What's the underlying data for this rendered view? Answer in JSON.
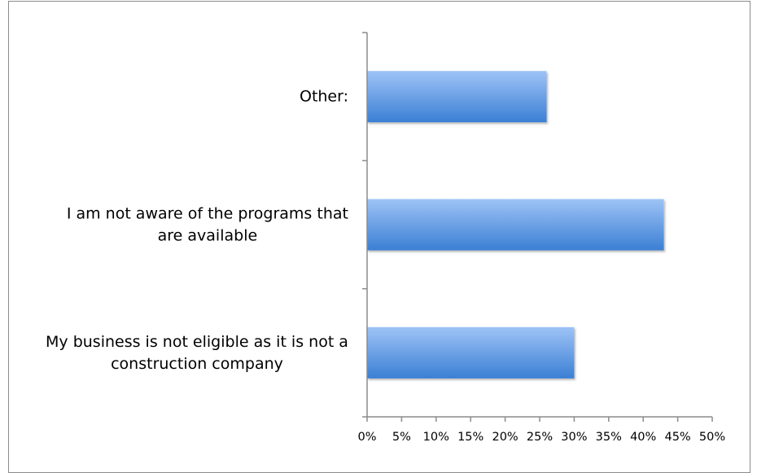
{
  "chart_data": {
    "type": "bar",
    "orientation": "horizontal",
    "categories": [
      "Other:",
      "I am not aware of the programs that are available",
      "My business is not eligible as it is not a construction company"
    ],
    "category_label_lines": [
      [
        "Other:"
      ],
      [
        "I am not aware of the programs that",
        "are available"
      ],
      [
        "My business is not eligible as it is not a",
        "construction company"
      ]
    ],
    "values": [
      0.26,
      0.43,
      0.3
    ],
    "xlim": [
      0,
      0.5
    ],
    "x_ticks": [
      0,
      0.05,
      0.1,
      0.15,
      0.2,
      0.25,
      0.3,
      0.35,
      0.4,
      0.45,
      0.5
    ],
    "x_tick_labels": [
      "0%",
      "5%",
      "10%",
      "15%",
      "20%",
      "25%",
      "30%",
      "35%",
      "40%",
      "45%",
      "50%"
    ],
    "grid": false,
    "legend": "none",
    "title": "",
    "xlabel": "",
    "ylabel": "",
    "colors": {
      "bar_top": "#9ec3f6",
      "bar_bottom": "#3b7fd4",
      "axis": "#8c8c8c",
      "frame": "#8c8c8c"
    }
  }
}
